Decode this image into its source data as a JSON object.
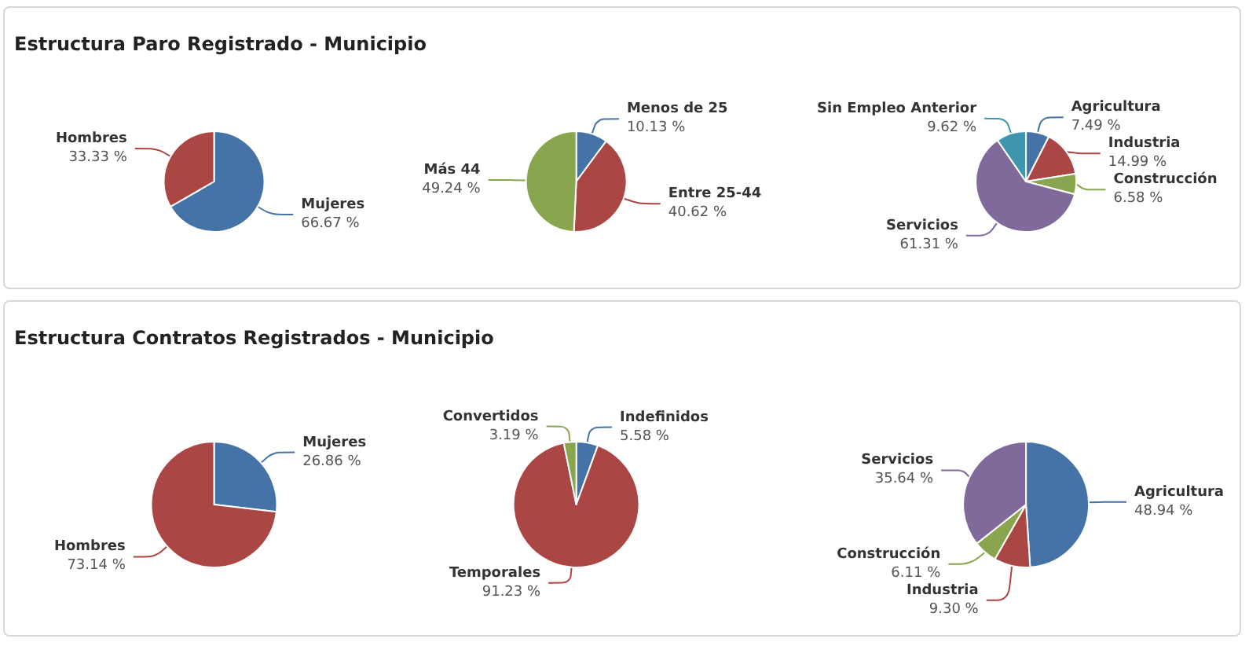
{
  "chart_data": [
    {
      "type": "pie",
      "title": "Estructura Paro Registrado - Municipio",
      "categories": [
        "Mujeres",
        "Hombres"
      ],
      "values": [
        66.67,
        33.33
      ],
      "colors": [
        "#4572a7",
        "#aa4643"
      ],
      "value_labels": [
        "66.67 %",
        "33.33 %"
      ]
    },
    {
      "type": "pie",
      "categories": [
        "Menos de 25",
        "Entre 25-44",
        "Más 44"
      ],
      "values": [
        10.13,
        40.62,
        49.24
      ],
      "colors": [
        "#4572a7",
        "#aa4643",
        "#89a54e"
      ],
      "value_labels": [
        "10.13 %",
        "40.62 %",
        "49.24 %"
      ]
    },
    {
      "type": "pie",
      "categories": [
        "Agricultura",
        "Industria",
        "Construcción",
        "Servicios",
        "Sin Empleo Anterior"
      ],
      "values": [
        7.49,
        14.99,
        6.58,
        61.31,
        9.62
      ],
      "colors": [
        "#4572a7",
        "#aa4643",
        "#89a54e",
        "#80699b",
        "#3d96ae"
      ],
      "value_labels": [
        "7.49 %",
        "14.99 %",
        "6.58 %",
        "61.31 %",
        "9.62 %"
      ]
    },
    {
      "type": "pie",
      "title": "Estructura Contratos Registrados - Municipio",
      "categories": [
        "Mujeres",
        "Hombres"
      ],
      "values": [
        26.86,
        73.14
      ],
      "colors": [
        "#4572a7",
        "#aa4643"
      ],
      "value_labels": [
        "26.86 %",
        "73.14 %"
      ]
    },
    {
      "type": "pie",
      "categories": [
        "Indefinidos",
        "Temporales",
        "Convertidos"
      ],
      "values": [
        5.58,
        91.23,
        3.19
      ],
      "colors": [
        "#4572a7",
        "#aa4643",
        "#89a54e"
      ],
      "value_labels": [
        "5.58 %",
        "91.23 %",
        "3.19 %"
      ]
    },
    {
      "type": "pie",
      "categories": [
        "Agricultura",
        "Industria",
        "Construcción",
        "Servicios"
      ],
      "values": [
        48.94,
        9.3,
        6.11,
        35.64
      ],
      "colors": [
        "#4572a7",
        "#aa4643",
        "#89a54e",
        "#80699b"
      ],
      "value_labels": [
        "48.94 %",
        "9.30 %",
        "6.11 %",
        "35.64 %"
      ]
    }
  ]
}
